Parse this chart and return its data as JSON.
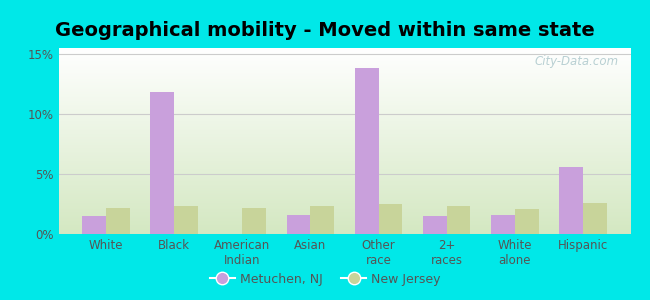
{
  "title": "Geographical mobility - Moved within same state",
  "categories": [
    "White",
    "Black",
    "American\nIndian",
    "Asian",
    "Other\nrace",
    "2+\nraces",
    "White\nalone",
    "Hispanic"
  ],
  "metuchen_values": [
    1.5,
    11.8,
    0.0,
    1.6,
    13.8,
    1.5,
    1.6,
    5.6
  ],
  "nj_values": [
    2.2,
    2.3,
    2.2,
    2.3,
    2.5,
    2.3,
    2.1,
    2.6
  ],
  "metuchen_color": "#c9a0dc",
  "nj_color": "#c8d49a",
  "background_color": "#00e8e8",
  "ylim_max": 15.5,
  "yticks": [
    0,
    5,
    10,
    15
  ],
  "ytick_labels": [
    "0%",
    "5%",
    "10%",
    "15%"
  ],
  "watermark": "City-Data.com",
  "legend_labels": [
    "Metuchen, NJ",
    "New Jersey"
  ],
  "bar_width": 0.35,
  "title_fontsize": 14,
  "tick_fontsize": 8.5,
  "legend_fontsize": 9
}
